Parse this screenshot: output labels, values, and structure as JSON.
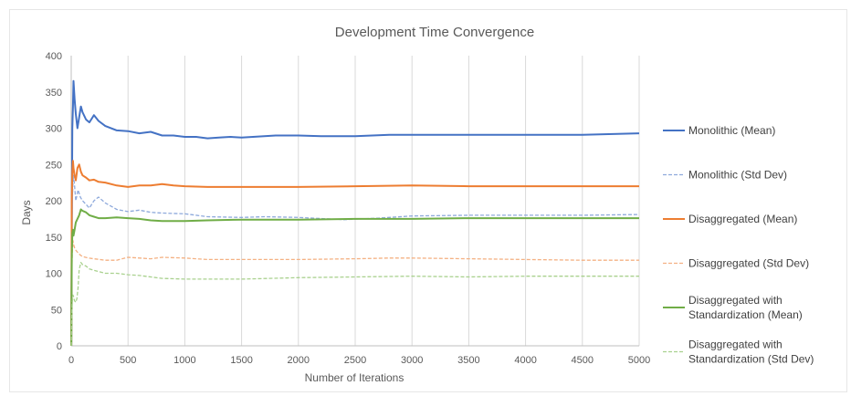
{
  "chart_data": {
    "type": "line",
    "title": "Development Time Convergence",
    "xlabel": "Number of Iterations",
    "ylabel": "Days",
    "xlim": [
      0,
      5000
    ],
    "ylim": [
      0,
      400
    ],
    "x_ticks": [
      0,
      500,
      1000,
      1500,
      2000,
      2500,
      3000,
      3500,
      4000,
      4500,
      5000
    ],
    "y_ticks": [
      0,
      50,
      100,
      150,
      200,
      250,
      300,
      350,
      400
    ],
    "grid": "vertical",
    "legend": "right",
    "series": [
      {
        "name": "Monolithic (Mean)",
        "color": "#4472C4",
        "style": "solid",
        "points": [
          [
            1,
            0
          ],
          [
            5,
            150
          ],
          [
            10,
            300
          ],
          [
            15,
            330
          ],
          [
            20,
            365
          ],
          [
            30,
            340
          ],
          [
            40,
            320
          ],
          [
            55,
            300
          ],
          [
            70,
            315
          ],
          [
            85,
            330
          ],
          [
            100,
            322
          ],
          [
            130,
            312
          ],
          [
            160,
            308
          ],
          [
            200,
            318
          ],
          [
            240,
            310
          ],
          [
            300,
            303
          ],
          [
            400,
            297
          ],
          [
            500,
            296
          ],
          [
            600,
            293
          ],
          [
            700,
            295
          ],
          [
            800,
            290
          ],
          [
            900,
            290
          ],
          [
            1000,
            288
          ],
          [
            1100,
            288
          ],
          [
            1200,
            286
          ],
          [
            1300,
            287
          ],
          [
            1400,
            288
          ],
          [
            1500,
            287
          ],
          [
            1600,
            288
          ],
          [
            1800,
            290
          ],
          [
            2000,
            290
          ],
          [
            2200,
            289
          ],
          [
            2500,
            289
          ],
          [
            2800,
            291
          ],
          [
            3000,
            291
          ],
          [
            3500,
            291
          ],
          [
            4000,
            291
          ],
          [
            4500,
            291
          ],
          [
            5000,
            293
          ]
        ]
      },
      {
        "name": "Monolithic (Std Dev)",
        "color": "#8FAADC",
        "style": "dashed",
        "points": [
          [
            1,
            0
          ],
          [
            5,
            150
          ],
          [
            10,
            200
          ],
          [
            15,
            225
          ],
          [
            20,
            235
          ],
          [
            30,
            220
          ],
          [
            40,
            200
          ],
          [
            60,
            215
          ],
          [
            80,
            205
          ],
          [
            100,
            200
          ],
          [
            130,
            195
          ],
          [
            160,
            190
          ],
          [
            200,
            200
          ],
          [
            240,
            205
          ],
          [
            300,
            197
          ],
          [
            400,
            188
          ],
          [
            500,
            185
          ],
          [
            600,
            187
          ],
          [
            700,
            184
          ],
          [
            800,
            183
          ],
          [
            1000,
            182
          ],
          [
            1200,
            178
          ],
          [
            1500,
            177
          ],
          [
            1700,
            178
          ],
          [
            2000,
            177
          ],
          [
            2400,
            174
          ],
          [
            2700,
            176
          ],
          [
            3000,
            179
          ],
          [
            3500,
            180
          ],
          [
            4000,
            180
          ],
          [
            4500,
            180
          ],
          [
            5000,
            181
          ]
        ]
      },
      {
        "name": "Disaggregated (Mean)",
        "color": "#ED7D31",
        "style": "solid",
        "points": [
          [
            1,
            0
          ],
          [
            5,
            200
          ],
          [
            10,
            240
          ],
          [
            15,
            255
          ],
          [
            20,
            245
          ],
          [
            30,
            235
          ],
          [
            40,
            228
          ],
          [
            55,
            245
          ],
          [
            70,
            250
          ],
          [
            85,
            240
          ],
          [
            100,
            235
          ],
          [
            130,
            232
          ],
          [
            160,
            228
          ],
          [
            200,
            229
          ],
          [
            240,
            226
          ],
          [
            300,
            225
          ],
          [
            400,
            221
          ],
          [
            500,
            219
          ],
          [
            600,
            221
          ],
          [
            700,
            221
          ],
          [
            800,
            223
          ],
          [
            900,
            221
          ],
          [
            1000,
            220
          ],
          [
            1200,
            219
          ],
          [
            1500,
            219
          ],
          [
            2000,
            219
          ],
          [
            2500,
            220
          ],
          [
            3000,
            221
          ],
          [
            3500,
            220
          ],
          [
            4000,
            220
          ],
          [
            4500,
            220
          ],
          [
            5000,
            220
          ]
        ]
      },
      {
        "name": "Disaggregated (Std Dev)",
        "color": "#F4B183",
        "style": "dashed",
        "points": [
          [
            1,
            0
          ],
          [
            5,
            100
          ],
          [
            10,
            130
          ],
          [
            15,
            145
          ],
          [
            20,
            140
          ],
          [
            30,
            135
          ],
          [
            40,
            132
          ],
          [
            60,
            128
          ],
          [
            80,
            125
          ],
          [
            100,
            123
          ],
          [
            150,
            121
          ],
          [
            200,
            120
          ],
          [
            300,
            118
          ],
          [
            400,
            118
          ],
          [
            500,
            122
          ],
          [
            600,
            121
          ],
          [
            700,
            120
          ],
          [
            800,
            122
          ],
          [
            1000,
            121
          ],
          [
            1200,
            119
          ],
          [
            1500,
            119
          ],
          [
            2000,
            119
          ],
          [
            2500,
            120
          ],
          [
            2800,
            121
          ],
          [
            3000,
            121
          ],
          [
            3500,
            120
          ],
          [
            4000,
            119
          ],
          [
            4500,
            118
          ],
          [
            5000,
            118
          ]
        ]
      },
      {
        "name": "Disaggregated with Standardization (Mean)",
        "color": "#70AD47",
        "style": "solid",
        "points": [
          [
            1,
            0
          ],
          [
            5,
            120
          ],
          [
            10,
            155
          ],
          [
            15,
            160
          ],
          [
            20,
            152
          ],
          [
            30,
            160
          ],
          [
            40,
            170
          ],
          [
            55,
            175
          ],
          [
            70,
            180
          ],
          [
            85,
            188
          ],
          [
            100,
            186
          ],
          [
            130,
            184
          ],
          [
            160,
            180
          ],
          [
            200,
            178
          ],
          [
            240,
            176
          ],
          [
            300,
            176
          ],
          [
            400,
            177
          ],
          [
            500,
            176
          ],
          [
            600,
            175
          ],
          [
            700,
            173
          ],
          [
            800,
            172
          ],
          [
            1000,
            172
          ],
          [
            1200,
            173
          ],
          [
            1500,
            174
          ],
          [
            2000,
            174
          ],
          [
            2500,
            175
          ],
          [
            3000,
            175
          ],
          [
            3500,
            176
          ],
          [
            4000,
            176
          ],
          [
            4500,
            176
          ],
          [
            5000,
            176
          ]
        ]
      },
      {
        "name": "Disaggregated with Standardization (Std Dev)",
        "color": "#A9D18E",
        "style": "dashed",
        "points": [
          [
            1,
            0
          ],
          [
            5,
            40
          ],
          [
            10,
            60
          ],
          [
            15,
            70
          ],
          [
            20,
            68
          ],
          [
            30,
            62
          ],
          [
            40,
            60
          ],
          [
            50,
            65
          ],
          [
            60,
            80
          ],
          [
            70,
            105
          ],
          [
            85,
            115
          ],
          [
            100,
            112
          ],
          [
            130,
            110
          ],
          [
            160,
            106
          ],
          [
            200,
            104
          ],
          [
            300,
            100
          ],
          [
            400,
            100
          ],
          [
            500,
            98
          ],
          [
            600,
            97
          ],
          [
            700,
            95
          ],
          [
            800,
            93
          ],
          [
            1000,
            92
          ],
          [
            1200,
            92
          ],
          [
            1500,
            92
          ],
          [
            2000,
            94
          ],
          [
            2500,
            95
          ],
          [
            3000,
            96
          ],
          [
            3500,
            95
          ],
          [
            4000,
            96
          ],
          [
            4500,
            96
          ],
          [
            5000,
            96
          ]
        ]
      }
    ]
  },
  "legend": {
    "items": [
      {
        "lines": [
          "Monolithic (Mean)"
        ]
      },
      {
        "lines": [
          "Monolithic (Std Dev)"
        ]
      },
      {
        "lines": [
          "Disaggregated (Mean)"
        ]
      },
      {
        "lines": [
          "Disaggregated (Std Dev)"
        ]
      },
      {
        "lines": [
          "Disaggregated with",
          "Standardization (Mean)"
        ]
      },
      {
        "lines": [
          "Disaggregated with",
          "Standardization (Std Dev)"
        ]
      }
    ]
  }
}
